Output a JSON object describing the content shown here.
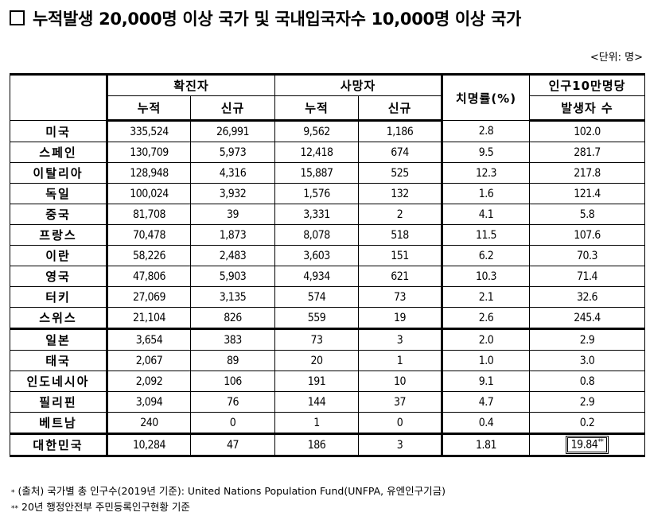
{
  "title": "누적발생 20,000명 이상 국가 및 국내입국자수 10,000명 이상 국가",
  "unit": "<단위: 명>",
  "header": {
    "confirmed": "확진자",
    "deaths": "사망자",
    "cfr": "치명률(%)",
    "per100k_line1": "인구10만명당",
    "per100k_line2": "발생자 수",
    "cumulative": "누적",
    "new": "신규"
  },
  "rows": [
    {
      "country": "미국",
      "c_cum": "335,524",
      "c_new": "26,991",
      "d_cum": "9,562",
      "d_new": "1,186",
      "cfr": "2.8",
      "per100k": "102.0"
    },
    {
      "country": "스페인",
      "c_cum": "130,709",
      "c_new": "5,973",
      "d_cum": "12,418",
      "d_new": "674",
      "cfr": "9.5",
      "per100k": "281.7"
    },
    {
      "country": "이탈리아",
      "c_cum": "128,948",
      "c_new": "4,316",
      "d_cum": "15,887",
      "d_new": "525",
      "cfr": "12.3",
      "per100k": "217.8"
    },
    {
      "country": "독일",
      "c_cum": "100,024",
      "c_new": "3,932",
      "d_cum": "1,576",
      "d_new": "132",
      "cfr": "1.6",
      "per100k": "121.4"
    },
    {
      "country": "중국",
      "c_cum": "81,708",
      "c_new": "39",
      "d_cum": "3,331",
      "d_new": "2",
      "cfr": "4.1",
      "per100k": "5.8"
    },
    {
      "country": "프랑스",
      "c_cum": "70,478",
      "c_new": "1,873",
      "d_cum": "8,078",
      "d_new": "518",
      "cfr": "11.5",
      "per100k": "107.6"
    },
    {
      "country": "이란",
      "c_cum": "58,226",
      "c_new": "2,483",
      "d_cum": "3,603",
      "d_new": "151",
      "cfr": "6.2",
      "per100k": "70.3"
    },
    {
      "country": "영국",
      "c_cum": "47,806",
      "c_new": "5,903",
      "d_cum": "4,934",
      "d_new": "621",
      "cfr": "10.3",
      "per100k": "71.4"
    },
    {
      "country": "터키",
      "c_cum": "27,069",
      "c_new": "3,135",
      "d_cum": "574",
      "d_new": "73",
      "cfr": "2.1",
      "per100k": "32.6"
    },
    {
      "country": "스위스",
      "c_cum": "21,104",
      "c_new": "826",
      "d_cum": "559",
      "d_new": "19",
      "cfr": "2.6",
      "per100k": "245.4"
    },
    {
      "country": "일본",
      "c_cum": "3,654",
      "c_new": "383",
      "d_cum": "73",
      "d_new": "3",
      "cfr": "2.0",
      "per100k": "2.9"
    },
    {
      "country": "태국",
      "c_cum": "2,067",
      "c_new": "89",
      "d_cum": "20",
      "d_new": "1",
      "cfr": "1.0",
      "per100k": "3.0"
    },
    {
      "country": "인도네시아",
      "c_cum": "2,092",
      "c_new": "106",
      "d_cum": "191",
      "d_new": "10",
      "cfr": "9.1",
      "per100k": "0.8"
    },
    {
      "country": "필리핀",
      "c_cum": "3,094",
      "c_new": "76",
      "d_cum": "144",
      "d_new": "37",
      "cfr": "4.7",
      "per100k": "2.9"
    },
    {
      "country": "베트남",
      "c_cum": "240",
      "c_new": "0",
      "d_cum": "1",
      "d_new": "0",
      "cfr": "0.4",
      "per100k": "0.2"
    },
    {
      "country": "대한민국",
      "c_cum": "10,284",
      "c_new": "47",
      "d_cum": "186",
      "d_new": "3",
      "cfr": "1.81",
      "per100k": "19.84",
      "per100k_mark": "**"
    }
  ],
  "footnotes": [
    {
      "mark": "*",
      "text": "(출처) 국가별 총 인구수(2019년 기준): United Nations Population Fund(UNFPA, 유엔인구기금)"
    },
    {
      "mark": "**",
      "text": "20년 행정안전부 주민등록인구현황 기준"
    }
  ]
}
